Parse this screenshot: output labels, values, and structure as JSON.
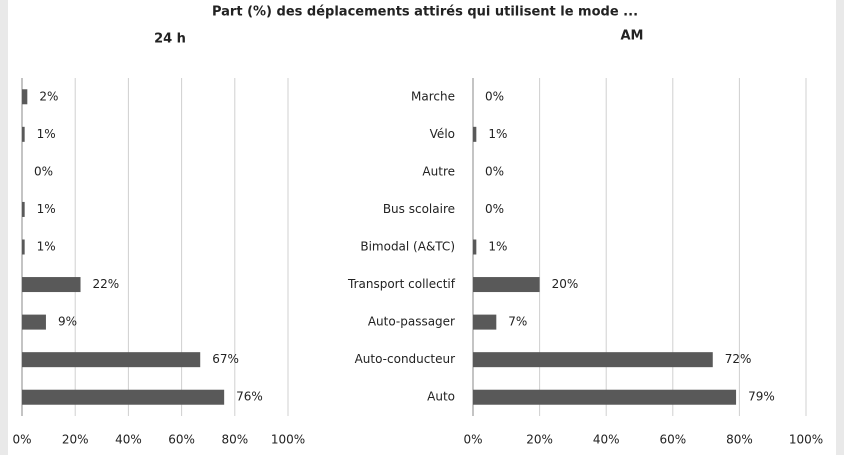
{
  "title": "Part (%) des déplacements attirés qui utilisent le mode ...",
  "chart_data": [
    {
      "type": "hbar",
      "title": "24 h",
      "categories": [
        null,
        null,
        null,
        null,
        null,
        null,
        null,
        null,
        null
      ],
      "values": [
        2,
        1,
        0,
        1,
        1,
        22,
        9,
        67,
        76
      ],
      "value_labels": [
        "2%",
        "1%",
        "0%",
        "1%",
        "1%",
        "22%",
        "9%",
        "67%",
        "76%"
      ],
      "color": "#595959",
      "xlim": [
        0,
        100
      ],
      "xticks": [
        {
          "value": 0,
          "label": "0%"
        },
        {
          "value": 20,
          "label": "20%"
        },
        {
          "value": 40,
          "label": "40%"
        },
        {
          "value": 60,
          "label": "60%"
        },
        {
          "value": 80,
          "label": "80%"
        },
        {
          "value": 100,
          "label": "100%"
        }
      ],
      "grid": true
    },
    {
      "type": "hbar",
      "title": "AM",
      "categories": [
        "Marche",
        "Vélo",
        "Autre",
        "Bus scolaire",
        "Bimodal (A&TC)",
        "Transport collectif",
        "Auto-passager",
        "Auto-conducteur",
        "Auto"
      ],
      "values": [
        0,
        1,
        0,
        0,
        1,
        20,
        7,
        72,
        79
      ],
      "value_labels": [
        "0%",
        "1%",
        "0%",
        "0%",
        "1%",
        "20%",
        "7%",
        "72%",
        "79%"
      ],
      "color": "#595959",
      "xlim": [
        0,
        100
      ],
      "xticks": [
        {
          "value": 0,
          "label": "0%"
        },
        {
          "value": 20,
          "label": "20%"
        },
        {
          "value": 40,
          "label": "40%"
        },
        {
          "value": 60,
          "label": "60%"
        },
        {
          "value": 80,
          "label": "80%"
        },
        {
          "value": 100,
          "label": "100%"
        }
      ],
      "grid": true
    }
  ]
}
